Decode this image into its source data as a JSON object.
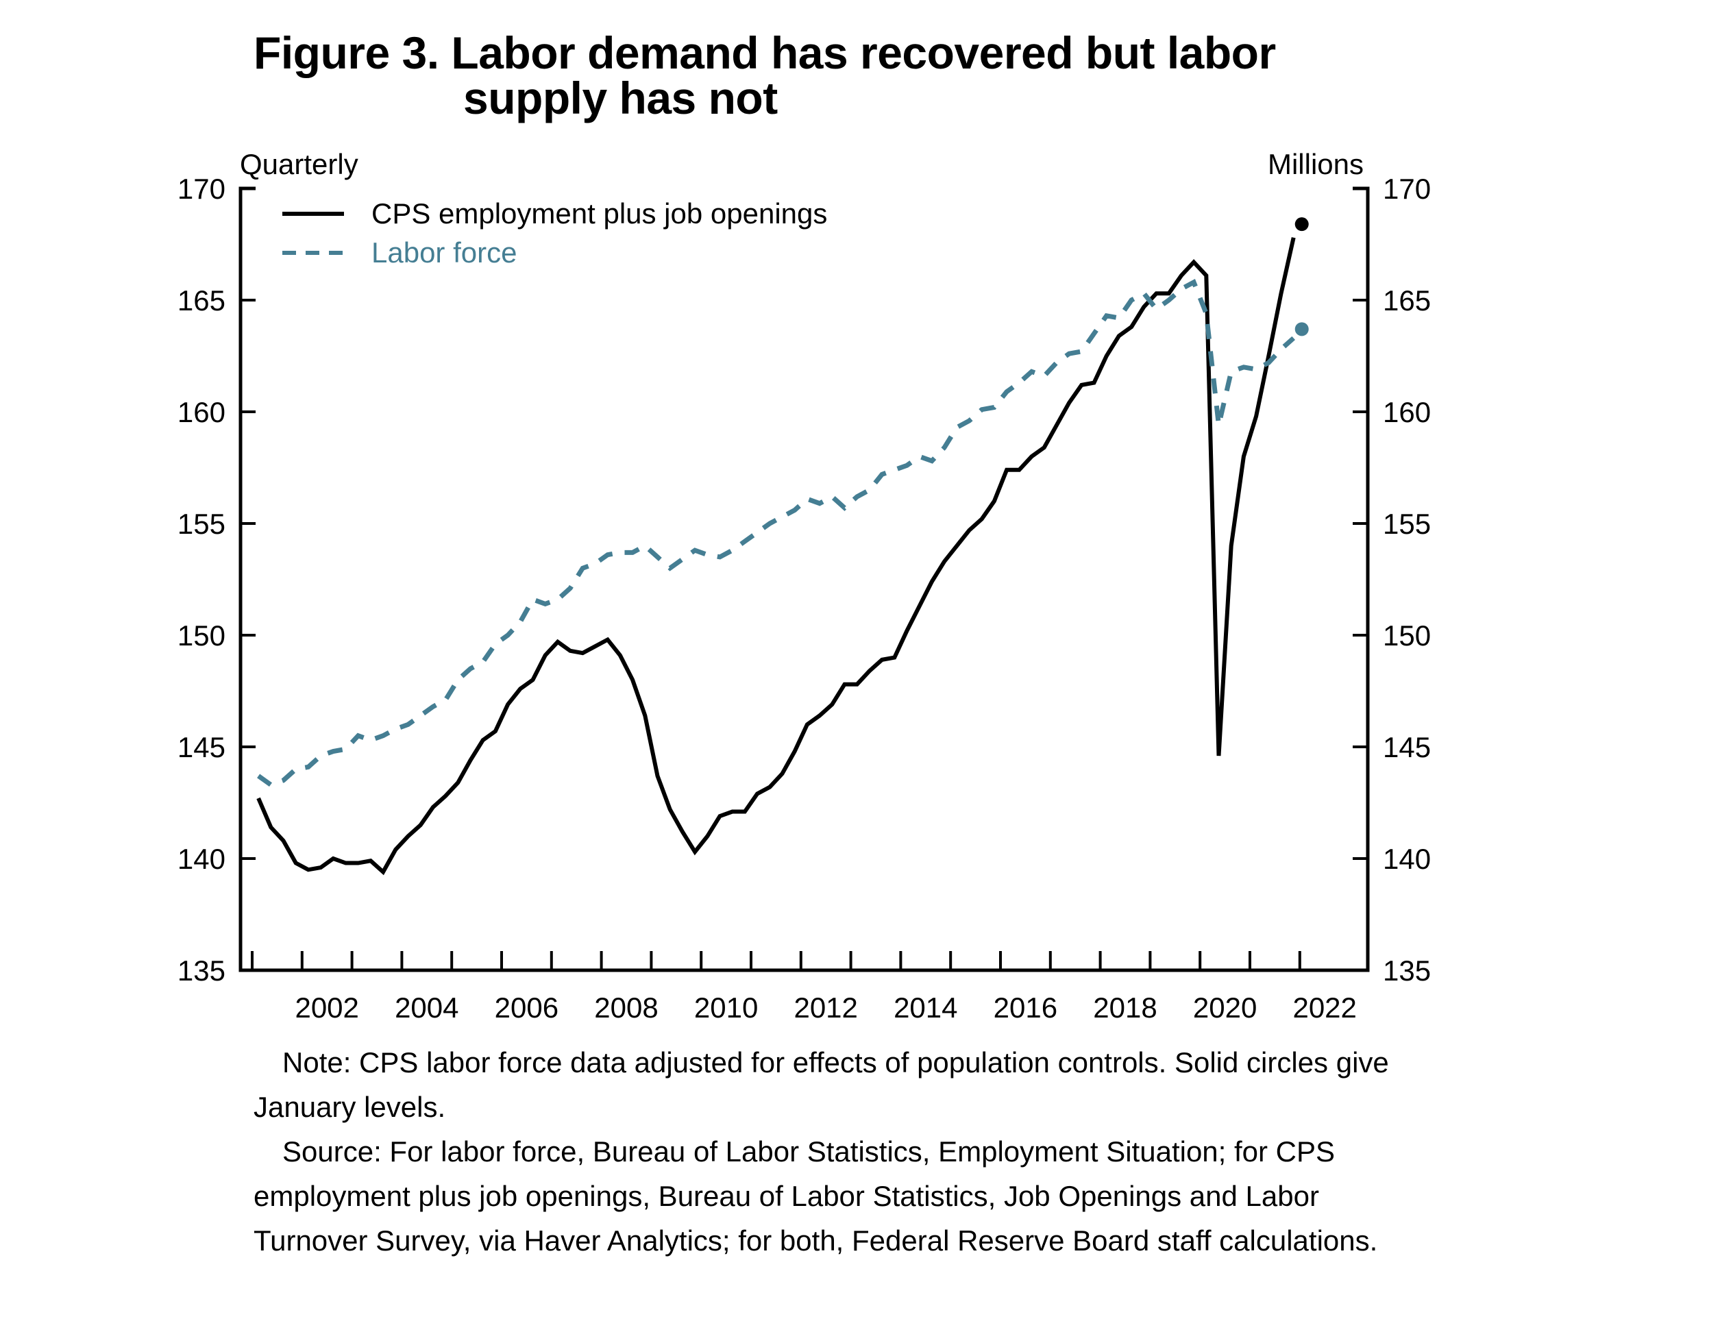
{
  "figure": {
    "title_line1": "Figure 3. Labor demand has recovered but labor",
    "title_line2": "supply has not",
    "left_unit_label": "Quarterly",
    "right_unit_label": "Millions"
  },
  "notes": {
    "note": "Note: CPS labor force data adjusted for effects of population controls. Solid circles give January levels.",
    "source": "Source: For labor force, Bureau of Labor Statistics, Employment Situation; for CPS employment plus job openings, Bureau of Labor Statistics, Job Openings and Labor Turnover Survey, via Haver Analytics; for both, Federal Reserve Board staff calculations."
  },
  "chart_data": {
    "type": "line",
    "title": "Figure 3. Labor demand has recovered but labor supply has not",
    "xlabel": "",
    "ylabel": "Millions",
    "frequency": "Quarterly",
    "xlim": [
      2001,
      2022.25
    ],
    "ylim": [
      135,
      170
    ],
    "y_ticks": [
      135,
      140,
      145,
      150,
      155,
      160,
      165,
      170
    ],
    "x_tick_labels": [
      "2002",
      "2004",
      "2006",
      "2008",
      "2010",
      "2012",
      "2014",
      "2016",
      "2018",
      "2020",
      "2022"
    ],
    "grid": false,
    "legend_position": "top-left",
    "start_quarter": "2001Q1",
    "series": [
      {
        "name": "CPS employment plus job openings",
        "color": "#000000",
        "style": "solid",
        "values": [
          142.7,
          141.4,
          140.8,
          139.8,
          139.5,
          139.6,
          140.0,
          139.8,
          139.8,
          139.9,
          139.4,
          140.4,
          141.0,
          141.5,
          142.3,
          142.8,
          143.4,
          144.4,
          145.3,
          145.7,
          146.9,
          147.6,
          148.0,
          149.1,
          149.7,
          149.3,
          149.2,
          149.5,
          149.8,
          149.1,
          148.0,
          146.4,
          143.7,
          142.2,
          141.2,
          140.3,
          141.0,
          141.9,
          142.1,
          142.1,
          142.9,
          143.2,
          143.8,
          144.8,
          146.0,
          146.4,
          146.9,
          147.8,
          147.8,
          148.4,
          148.9,
          149.0,
          150.2,
          151.3,
          152.4,
          153.3,
          154.0,
          154.7,
          155.2,
          156.0,
          157.4,
          157.4,
          158.0,
          158.4,
          159.4,
          160.4,
          161.2,
          161.3,
          162.5,
          163.4,
          163.8,
          164.7,
          165.3,
          165.3,
          166.1,
          166.7,
          166.1,
          144.6,
          154.0,
          158.0,
          159.8,
          162.5,
          165.3,
          167.8
        ],
        "january_2022_level": 168.4
      },
      {
        "name": "Labor force",
        "color": "#457e93",
        "style": "dashed",
        "values": [
          143.7,
          143.3,
          143.5,
          144.0,
          144.1,
          144.6,
          144.8,
          144.9,
          145.5,
          145.3,
          145.5,
          145.8,
          146.0,
          146.4,
          146.8,
          147.1,
          148.0,
          148.5,
          148.8,
          149.6,
          150.0,
          150.6,
          151.6,
          151.4,
          151.6,
          152.1,
          153.0,
          153.2,
          153.6,
          153.7,
          153.7,
          154.0,
          153.5,
          153.0,
          153.4,
          153.8,
          153.6,
          153.5,
          153.8,
          154.2,
          154.6,
          155.0,
          155.3,
          155.6,
          156.1,
          155.9,
          156.2,
          155.7,
          156.2,
          156.5,
          157.2,
          157.4,
          157.6,
          158.0,
          157.8,
          158.4,
          159.3,
          159.6,
          160.1,
          160.2,
          160.9,
          161.3,
          161.8,
          161.6,
          162.2,
          162.6,
          162.7,
          163.5,
          164.3,
          164.2,
          165.0,
          165.3,
          164.6,
          165.0,
          165.5,
          165.8,
          164.4,
          159.4,
          161.8,
          162.0,
          161.9,
          162.2,
          162.8,
          163.3
        ],
        "january_2022_level": 163.7
      }
    ]
  }
}
